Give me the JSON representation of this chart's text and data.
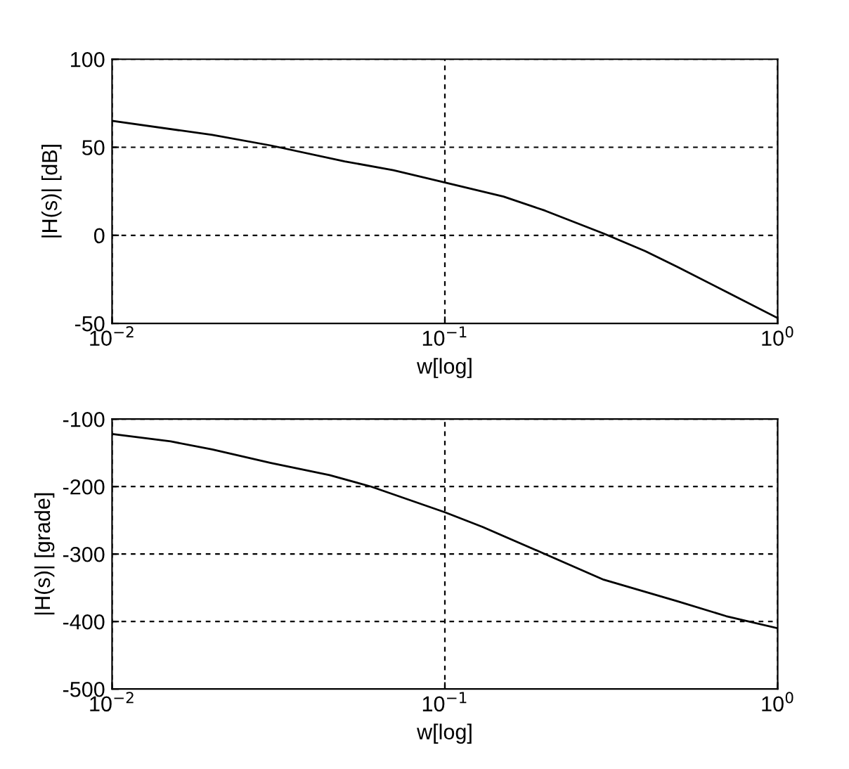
{
  "chart_data": [
    {
      "type": "line",
      "xlabel": "w[log]",
      "ylabel": "|H(s)| [dB]",
      "log": "x",
      "grid": true,
      "xlim": [
        0.01,
        1
      ],
      "ylim": [
        -50,
        100
      ],
      "xticks": [
        {
          "value": 0.01,
          "label": "10$^{−2}$"
        },
        {
          "value": 0.1,
          "label": "10$^{−1}$"
        },
        {
          "value": 1,
          "label": "10$^{0}$"
        }
      ],
      "yticks": [
        -50,
        0,
        50,
        100
      ],
      "series": [
        {
          "color": "#000000",
          "x": [
            0.01,
            0.02,
            0.03,
            0.05,
            0.07,
            0.1,
            0.15,
            0.2,
            0.3,
            0.4,
            0.5,
            0.7,
            1
          ],
          "values": [
            65,
            57,
            51,
            42,
            37,
            30,
            22,
            14,
            1,
            -9,
            -18,
            -32,
            -47
          ]
        }
      ]
    },
    {
      "type": "line",
      "xlabel": "w[log]",
      "ylabel": "|H(s)| [grade]",
      "log": "x",
      "grid": true,
      "xlim": [
        0.01,
        1
      ],
      "ylim": [
        -500,
        -100
      ],
      "xticks": [
        {
          "value": 0.01,
          "label": "10$^{−2}$"
        },
        {
          "value": 0.1,
          "label": "10$^{−1}$"
        },
        {
          "value": 1,
          "label": "10$^{0}$"
        }
      ],
      "yticks": [
        -500,
        -400,
        -300,
        -200,
        -100
      ],
      "series": [
        {
          "color": "#000000",
          "x": [
            0.01,
            0.015,
            0.02,
            0.03,
            0.045,
            0.06,
            0.1,
            0.13,
            0.2,
            0.3,
            0.5,
            0.7,
            1
          ],
          "values": [
            -122,
            -133,
            -145,
            -165,
            -183,
            -200,
            -238,
            -260,
            -300,
            -338,
            -370,
            -392,
            -410
          ]
        }
      ]
    }
  ]
}
